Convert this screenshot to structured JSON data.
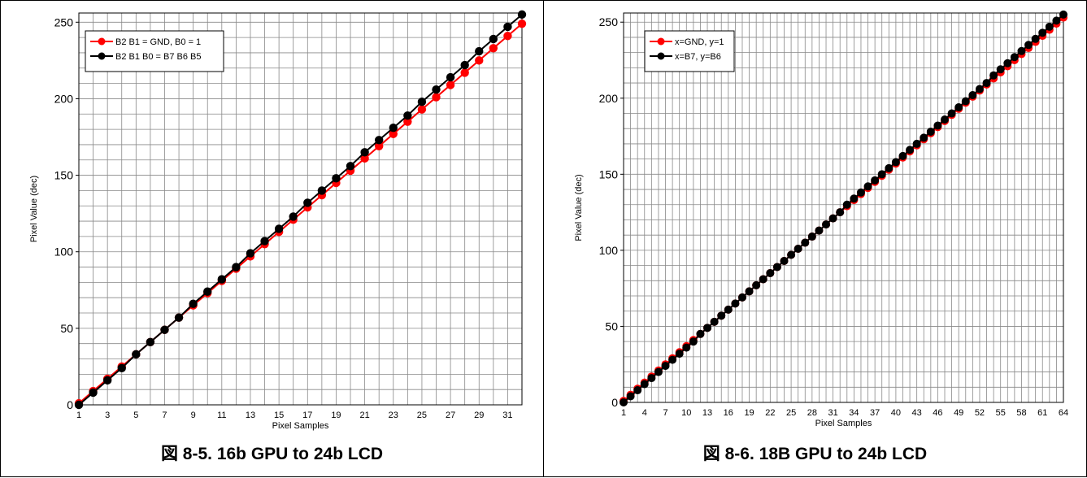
{
  "figures": [
    {
      "caption": "図 8-5. 16b GPU to 24b LCD",
      "chart_data": {
        "type": "line",
        "title": "",
        "xlabel": "Pixel Samples",
        "ylabel": "Pixel Value (dec)",
        "xlim": [
          1,
          32
        ],
        "ylim": [
          0,
          256
        ],
        "yticks": [
          0,
          50,
          100,
          150,
          200,
          250
        ],
        "xtick_labels": [
          1,
          3,
          5,
          7,
          9,
          11,
          13,
          15,
          17,
          19,
          21,
          23,
          25,
          27,
          29,
          31
        ],
        "grid": true,
        "legend_position": "top-left",
        "x": [
          1,
          2,
          3,
          4,
          5,
          6,
          7,
          8,
          9,
          10,
          11,
          12,
          13,
          14,
          15,
          16,
          17,
          18,
          19,
          20,
          21,
          22,
          23,
          24,
          25,
          26,
          27,
          28,
          29,
          30,
          31,
          32
        ],
        "series": [
          {
            "name": "B2 B1 = GND, B0 = 1",
            "color": "#ff0000",
            "values": [
              1,
              9,
              17,
              25,
              33,
              41,
              49,
              57,
              65,
              73,
              81,
              89,
              97,
              105,
              113,
              121,
              129,
              137,
              145,
              153,
              161,
              169,
              177,
              185,
              193,
              201,
              209,
              217,
              225,
              233,
              241,
              249
            ]
          },
          {
            "name": "B2 B1 B0 = B7 B6 B5",
            "color": "#000000",
            "values": [
              0,
              8,
              16,
              24,
              33,
              41,
              49,
              57,
              66,
              74,
              82,
              90,
              99,
              107,
              115,
              123,
              132,
              140,
              148,
              156,
              165,
              173,
              181,
              189,
              198,
              206,
              214,
              222,
              231,
              239,
              247,
              255
            ]
          }
        ]
      }
    },
    {
      "caption": "図 8-6. 18B GPU to 24b LCD",
      "chart_data": {
        "type": "line",
        "title": "",
        "xlabel": "Pixel Samples",
        "ylabel": "Pixel Value (dec)",
        "xlim": [
          1,
          64
        ],
        "ylim": [
          0,
          256
        ],
        "yticks": [
          0,
          50,
          100,
          150,
          200,
          250
        ],
        "xtick_labels": [
          1,
          4,
          7,
          10,
          13,
          16,
          19,
          22,
          25,
          28,
          31,
          34,
          37,
          40,
          43,
          46,
          49,
          52,
          55,
          58,
          61,
          64
        ],
        "grid": true,
        "legend_position": "top-left",
        "x": [
          1,
          2,
          3,
          4,
          5,
          6,
          7,
          8,
          9,
          10,
          11,
          12,
          13,
          14,
          15,
          16,
          17,
          18,
          19,
          20,
          21,
          22,
          23,
          24,
          25,
          26,
          27,
          28,
          29,
          30,
          31,
          32,
          33,
          34,
          35,
          36,
          37,
          38,
          39,
          40,
          41,
          42,
          43,
          44,
          45,
          46,
          47,
          48,
          49,
          50,
          51,
          52,
          53,
          54,
          55,
          56,
          57,
          58,
          59,
          60,
          61,
          62,
          63,
          64
        ],
        "series": [
          {
            "name": "x=GND, y=1",
            "color": "#ff0000",
            "values": [
              1,
              5,
              9,
              13,
              17,
              21,
              25,
              29,
              33,
              37,
              41,
              45,
              49,
              53,
              57,
              61,
              65,
              69,
              73,
              77,
              81,
              85,
              89,
              93,
              97,
              101,
              105,
              109,
              113,
              117,
              121,
              125,
              129,
              133,
              137,
              141,
              145,
              149,
              153,
              157,
              161,
              165,
              169,
              173,
              177,
              181,
              185,
              189,
              193,
              197,
              201,
              205,
              209,
              213,
              217,
              221,
              225,
              229,
              233,
              237,
              241,
              245,
              249,
              253
            ]
          },
          {
            "name": "x=B7, y=B6",
            "color": "#000000",
            "values": [
              0,
              4,
              8,
              12,
              16,
              20,
              24,
              28,
              32,
              36,
              40,
              45,
              49,
              53,
              57,
              61,
              65,
              69,
              73,
              77,
              81,
              85,
              89,
              93,
              97,
              101,
              105,
              109,
              113,
              117,
              121,
              125,
              130,
              134,
              138,
              142,
              146,
              150,
              154,
              158,
              162,
              166,
              170,
              174,
              178,
              182,
              186,
              190,
              194,
              198,
              202,
              206,
              210,
              215,
              219,
              223,
              227,
              231,
              235,
              239,
              243,
              247,
              251,
              255
            ]
          }
        ]
      }
    }
  ]
}
